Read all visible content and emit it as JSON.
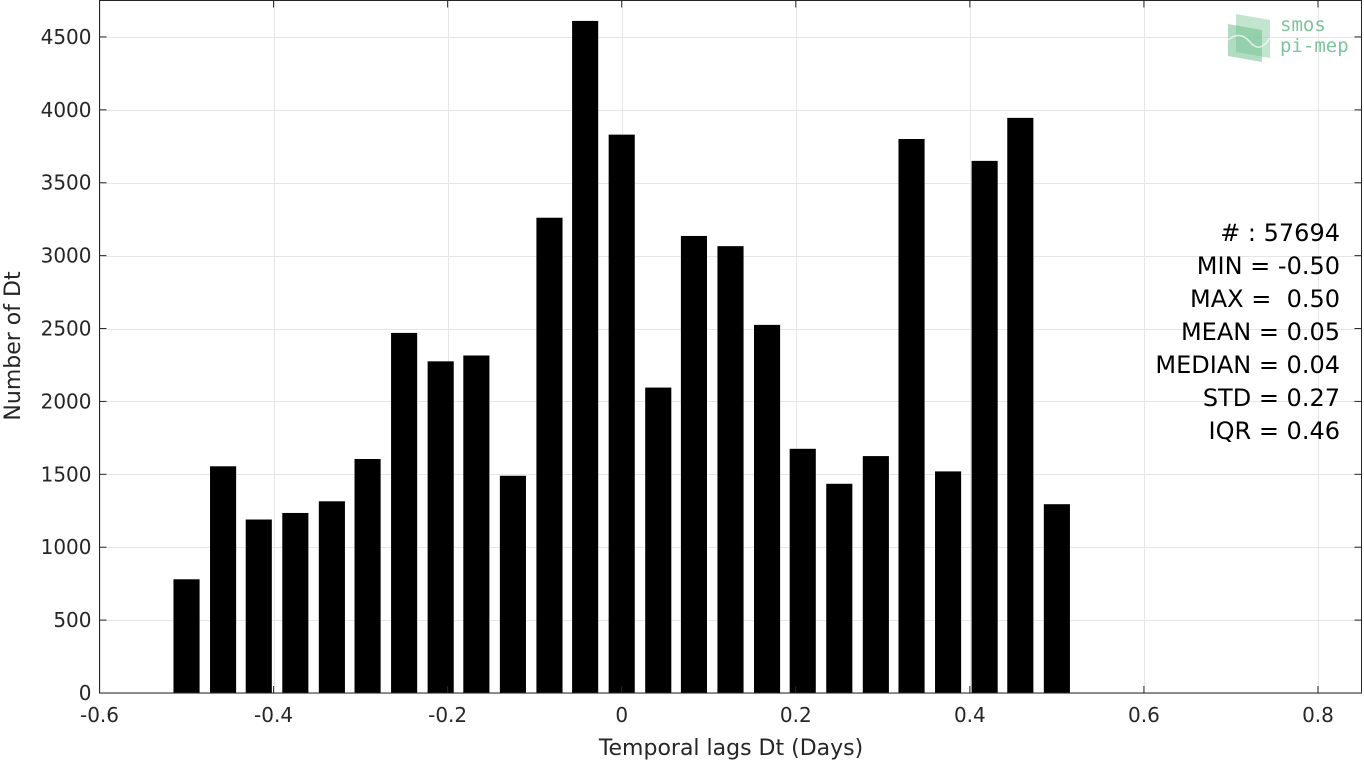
{
  "chart_data": {
    "type": "bar",
    "title": "",
    "xlabel": "Temporal lags Dt (Days)",
    "ylabel": "Number of Dt",
    "xlim": [
      -0.6,
      0.85
    ],
    "ylim": [
      0,
      4750
    ],
    "grid": true,
    "bar_color": "#000000",
    "grid_color": "#e6e6e6",
    "xticks": [
      -0.6,
      -0.4,
      -0.2,
      0,
      0.2,
      0.4,
      0.6,
      0.8
    ],
    "xtick_labels": [
      "-0.6",
      "-0.4",
      "-0.2",
      "0",
      "0.2",
      "0.4",
      "0.6",
      "0.8"
    ],
    "yticks": [
      0,
      500,
      1000,
      1500,
      2000,
      2500,
      3000,
      3500,
      4000,
      4500
    ],
    "ytick_labels": [
      "0",
      "500",
      "1000",
      "1500",
      "2000",
      "2500",
      "3000",
      "3500",
      "4000",
      "4500"
    ],
    "bar_width": 0.03,
    "x": [
      -0.5,
      -0.458,
      -0.417,
      -0.375,
      -0.333,
      -0.292,
      -0.25,
      -0.208,
      -0.167,
      -0.125,
      -0.083,
      -0.042,
      0,
      0.042,
      0.083,
      0.125,
      0.167,
      0.208,
      0.25,
      0.292,
      0.333,
      0.375,
      0.417,
      0.458,
      0.5
    ],
    "values": [
      780,
      1555,
      1190,
      1235,
      1315,
      1605,
      2470,
      2275,
      2315,
      1490,
      3260,
      4610,
      3830,
      2095,
      3135,
      3065,
      2525,
      1675,
      1435,
      1625,
      3800,
      1520,
      3650,
      3945,
      1295
    ]
  },
  "stats": [
    "# : 57694",
    "MIN = -0.50",
    "MAX =  0.50",
    "MEAN = 0.05",
    "MEDIAN = 0.04",
    "STD = 0.27",
    "IQR = 0.46"
  ],
  "logo": {
    "line1": "smos",
    "line2": "pi-mep",
    "color": "#7fc39a"
  }
}
